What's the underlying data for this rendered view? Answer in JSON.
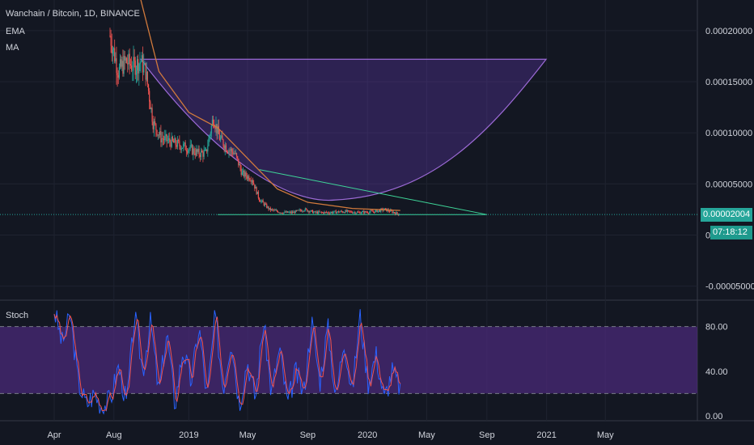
{
  "header": {
    "title": "Wanchain / Bitcoin, 1D, BINANCE",
    "indicators": [
      "EMA",
      "MA"
    ]
  },
  "price_tag": "0.00002004",
  "countdown": "07:18:12",
  "colors": {
    "background": "#131722",
    "up": "#26a69a",
    "down": "#ef5350",
    "ema": "#d27a3c",
    "ma": "#c2185b",
    "pattern_fill": "#673ab7",
    "pattern_stroke": "#9c6ad6",
    "triangle": "#3ed598",
    "stoch_k": "#2962ff",
    "stoch_d": "#ef5350",
    "stoch_band": "#4a2a78"
  },
  "chart_data": [
    {
      "type": "candlestick",
      "name": "price",
      "x_ticks": [
        "Apr",
        "Aug",
        "2019",
        "May",
        "Sep",
        "2020",
        "May",
        "Sep",
        "2021",
        "May"
      ],
      "y_ticks": [
        "0.00020000",
        "0.00015000",
        "0.00010000",
        "0.00005000",
        "0.00000000",
        "-0.00005000"
      ],
      "ylim": [
        -6.3e-05,
        0.00023
      ],
      "close_series_sampled": [
        [
          "2018-07-24",
          0.000195
        ],
        [
          "2018-08-10",
          0.00016
        ],
        [
          "2018-08-25",
          0.00017
        ],
        [
          "2018-09-10",
          0.000165
        ],
        [
          "2018-09-25",
          0.00017
        ],
        [
          "2018-10-05",
          0.00016
        ],
        [
          "2018-10-20",
          0.00011
        ],
        [
          "2018-11-05",
          9.5e-05
        ],
        [
          "2018-12-01",
          9e-05
        ],
        [
          "2018-12-31",
          8.5e-05
        ],
        [
          "2019-01-20",
          8e-05
        ],
        [
          "2019-02-05",
          8e-05
        ],
        [
          "2019-02-20",
          0.000115
        ],
        [
          "2019-03-05",
          9.5e-05
        ],
        [
          "2019-03-20",
          8.5e-05
        ],
        [
          "2019-04-05",
          8e-05
        ],
        [
          "2019-04-20",
          6e-05
        ],
        [
          "2019-05-10",
          5.5e-05
        ],
        [
          "2019-05-25",
          3.5e-05
        ],
        [
          "2019-06-15",
          2.5e-05
        ],
        [
          "2019-07-10",
          2.2e-05
        ],
        [
          "2019-08-01",
          2.2e-05
        ],
        [
          "2019-08-25",
          2.5e-05
        ],
        [
          "2019-09-15",
          2.2e-05
        ],
        [
          "2019-10-15",
          2.2e-05
        ],
        [
          "2019-11-15",
          2.3e-05
        ],
        [
          "2019-12-15",
          2.2e-05
        ],
        [
          "2020-01-15",
          2.3e-05
        ],
        [
          "2020-02-05",
          2.5e-05
        ],
        [
          "2020-02-25",
          2.2e-05
        ],
        [
          "2020-03-08",
          2.004e-05
        ]
      ],
      "horizontal_line": 2.004e-05,
      "rounding_bottom_top": 0.000172,
      "triangle": {
        "upper": [
          [
            "2019-05-25",
            6.4e-05
          ],
          [
            "2020-09-01",
            2e-05
          ]
        ],
        "lower": [
          [
            "2019-03-01",
            2e-05
          ],
          [
            "2020-09-01",
            2e-05
          ]
        ]
      },
      "ema_sampled": [
        [
          "2018-08-10",
          0.00028
        ],
        [
          "2018-09-25",
          0.00023
        ],
        [
          "2018-11-01",
          0.00016
        ],
        [
          "2019-01-01",
          0.00012
        ],
        [
          "2019-03-01",
          0.000105
        ],
        [
          "2019-05-01",
          7.5e-05
        ],
        [
          "2019-07-01",
          4.5e-05
        ],
        [
          "2019-09-01",
          3.2e-05
        ],
        [
          "2019-12-01",
          2.6e-05
        ],
        [
          "2020-03-08",
          2.4e-05
        ]
      ]
    },
    {
      "type": "line",
      "name": "Stoch",
      "y_ticks": [
        "80.00",
        "40.00",
        "0.00"
      ],
      "ylim": [
        -3,
        103
      ],
      "bands": [
        20,
        80
      ],
      "series": [
        {
          "name": "%K",
          "values": [
            95,
            65,
            90,
            30,
            10,
            20,
            8,
            15,
            45,
            10,
            90,
            40,
            85,
            20,
            75,
            10,
            60,
            30,
            80,
            15,
            90,
            25,
            70,
            10,
            50,
            15,
            85,
            20,
            60,
            10,
            40,
            20,
            85,
            30,
            80,
            15,
            70,
            20,
            90,
            30,
            55,
            15,
            40,
            25
          ]
        }
      ]
    }
  ]
}
